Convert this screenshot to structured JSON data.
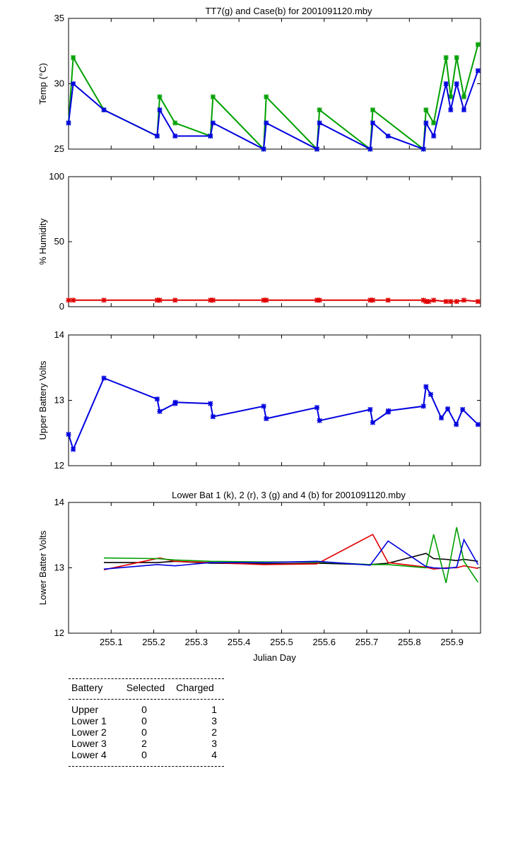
{
  "chart_data": [
    {
      "type": "line",
      "title": "TT7(g) and Case(b) for 2001091120.mby",
      "xlabel": "",
      "ylabel": "Temp  (°C)",
      "xlim": [
        255.0,
        255.967
      ],
      "ylim": [
        25,
        35
      ],
      "yticks": [
        "25",
        "30",
        "35"
      ],
      "grid": false,
      "series": [
        {
          "name": "TT7",
          "color": "#00a000",
          "x": [
            255.0,
            255.011,
            255.083,
            255.208,
            255.214,
            255.25,
            255.333,
            255.339,
            255.458,
            255.464,
            255.583,
            255.589,
            255.708,
            255.714,
            255.833,
            255.839,
            255.857,
            255.886,
            255.897,
            255.911,
            255.928,
            255.961
          ],
          "y": [
            27,
            32,
            28,
            26,
            29,
            27,
            26,
            29,
            25,
            29,
            25,
            28,
            25,
            28,
            25,
            28,
            27,
            32,
            29,
            32,
            29,
            33
          ]
        },
        {
          "name": "Case",
          "color": "#0000e0",
          "x": [
            255.0,
            255.011,
            255.083,
            255.208,
            255.214,
            255.25,
            255.333,
            255.339,
            255.458,
            255.464,
            255.583,
            255.589,
            255.708,
            255.714,
            255.75,
            255.833,
            255.839,
            255.857,
            255.886,
            255.897,
            255.911,
            255.928,
            255.961
          ],
          "y": [
            27,
            30,
            28,
            26,
            28,
            26,
            26,
            27,
            25,
            27,
            25,
            27,
            25,
            27,
            26,
            25,
            27,
            26,
            30,
            28,
            30,
            28,
            31
          ]
        }
      ]
    },
    {
      "type": "line",
      "title": "",
      "xlabel": "",
      "ylabel": "% Humidity",
      "xlim": [
        255.0,
        255.967
      ],
      "ylim": [
        0,
        100
      ],
      "yticks": [
        "0",
        "50",
        "100"
      ],
      "series": [
        {
          "name": "Humidity",
          "color": "#e00000",
          "x": [
            255.0,
            255.011,
            255.083,
            255.208,
            255.214,
            255.25,
            255.333,
            255.339,
            255.458,
            255.464,
            255.583,
            255.589,
            255.708,
            255.714,
            255.75,
            255.833,
            255.839,
            255.845,
            255.857,
            255.886,
            255.897,
            255.911,
            255.928,
            255.961
          ],
          "y": [
            5,
            5,
            5,
            5,
            5,
            5,
            5,
            5,
            5,
            5,
            5,
            5,
            5,
            5,
            5,
            5,
            4,
            4,
            5,
            4,
            4,
            4,
            5,
            4
          ]
        }
      ]
    },
    {
      "type": "line",
      "title": "",
      "xlabel": "",
      "ylabel": "Upper Battery Volts",
      "xlim": [
        255.0,
        255.967
      ],
      "ylim": [
        12,
        14
      ],
      "yticks": [
        "12",
        "13",
        "14"
      ],
      "series": [
        {
          "name": "Upper Battery",
          "color": "#0000e0",
          "x": [
            255.0,
            255.011,
            255.083,
            255.208,
            255.214,
            255.25,
            255.251,
            255.333,
            255.339,
            255.458,
            255.464,
            255.583,
            255.589,
            255.708,
            255.714,
            255.75,
            255.751,
            255.833,
            255.839,
            255.85,
            255.875,
            255.89,
            255.91,
            255.925,
            255.961
          ],
          "y": [
            12.48,
            12.25,
            13.34,
            13.02,
            12.83,
            12.95,
            12.97,
            12.95,
            12.75,
            12.91,
            12.72,
            12.89,
            12.69,
            12.86,
            12.66,
            12.82,
            12.84,
            12.91,
            13.21,
            13.09,
            12.73,
            12.87,
            12.63,
            12.86,
            12.63
          ]
        }
      ]
    },
    {
      "type": "line",
      "title": "Lower Bat 1 (k), 2 (r), 3 (g) and 4 (b) for 2001091120.mby",
      "xlabel": "Julian Day",
      "ylabel": "Lower Batter Volts",
      "xlim": [
        255.0,
        255.967
      ],
      "ylim": [
        12,
        14
      ],
      "yticks": [
        "12",
        "13",
        "14"
      ],
      "xticks": [
        "255.1",
        "255.2",
        "255.3",
        "255.4",
        "255.5",
        "255.6",
        "255.7",
        "255.8",
        "255.9"
      ],
      "series": [
        {
          "name": "Lower 1",
          "color": "#000000",
          "x": [
            255.083,
            255.208,
            255.25,
            255.333,
            255.458,
            255.583,
            255.708,
            255.75,
            255.839,
            255.857,
            255.886,
            255.911,
            255.928,
            255.961
          ],
          "y": [
            13.08,
            13.08,
            13.1,
            13.07,
            13.06,
            13.07,
            13.05,
            13.07,
            13.22,
            13.14,
            13.13,
            13.11,
            13.13,
            13.1
          ]
        },
        {
          "name": "Lower 2",
          "color": "#e00000",
          "x": [
            255.083,
            255.214,
            255.25,
            255.333,
            255.458,
            255.583,
            255.714,
            255.75,
            255.839,
            255.857,
            255.886,
            255.911,
            255.928,
            255.961
          ],
          "y": [
            12.97,
            13.15,
            13.1,
            13.08,
            13.05,
            13.06,
            13.51,
            13.08,
            13.01,
            12.98,
            13.0,
            13.0,
            13.03,
            12.99
          ]
        },
        {
          "name": "Lower 3",
          "color": "#00a000",
          "x": [
            255.083,
            255.208,
            255.25,
            255.333,
            255.458,
            255.583,
            255.708,
            255.75,
            255.839,
            255.857,
            255.886,
            255.911,
            255.928,
            255.961
          ],
          "y": [
            13.15,
            13.14,
            13.12,
            13.1,
            13.09,
            13.09,
            13.05,
            13.05,
            13.0,
            13.51,
            12.77,
            13.62,
            13.1,
            12.78
          ]
        },
        {
          "name": "Lower 4",
          "color": "#0000e0",
          "x": [
            255.083,
            255.208,
            255.25,
            255.333,
            255.458,
            255.583,
            255.708,
            255.75,
            255.839,
            255.857,
            255.886,
            255.911,
            255.928,
            255.961
          ],
          "y": [
            12.98,
            13.05,
            13.03,
            13.08,
            13.08,
            13.1,
            13.04,
            13.41,
            13.02,
            13.0,
            12.99,
            13.01,
            13.43,
            13.05
          ]
        }
      ]
    }
  ],
  "battery_table": {
    "headers": [
      "Battery",
      "Selected",
      "Charged"
    ],
    "rows": [
      [
        "Upper",
        "0",
        "1"
      ],
      [
        "Lower 1",
        "0",
        "3"
      ],
      [
        "Lower 2",
        "0",
        "2"
      ],
      [
        "Lower 3",
        "2",
        "3"
      ],
      [
        "Lower 4",
        "0",
        "4"
      ]
    ]
  }
}
